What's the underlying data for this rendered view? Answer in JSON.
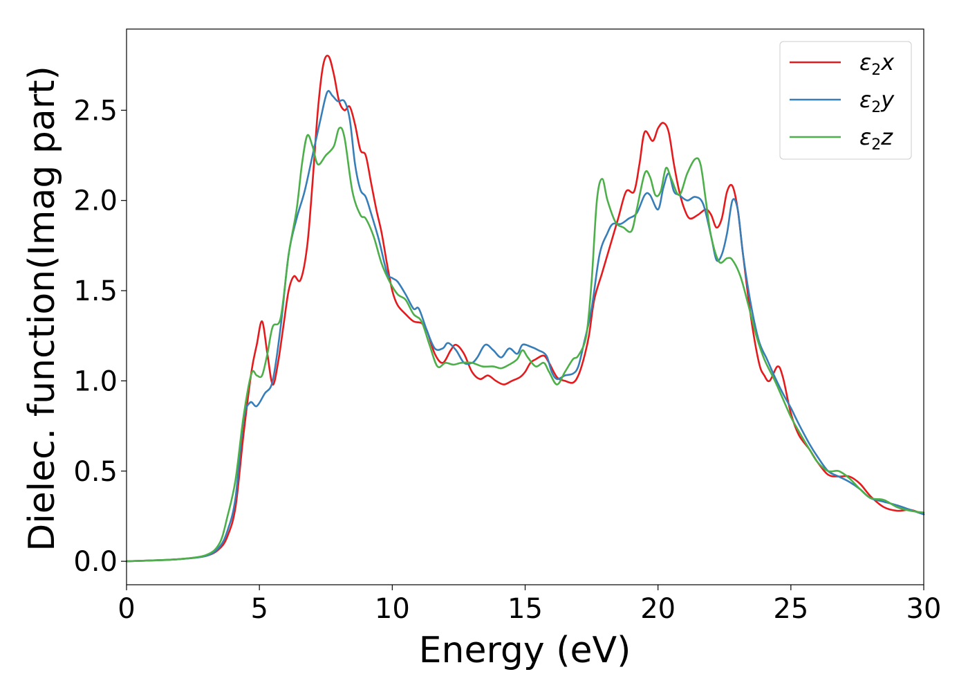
{
  "chart_data": {
    "type": "line",
    "xlabel": "Energy (eV)",
    "ylabel": "Dielec. function(Imag part)",
    "xlim": [
      0,
      30
    ],
    "ylim": [
      -0.13,
      2.95
    ],
    "xticks": [
      "0",
      "5",
      "10",
      "15",
      "20",
      "25",
      "30"
    ],
    "yticks": [
      "0.0",
      "0.5",
      "1.0",
      "1.5",
      "2.0",
      "2.5"
    ],
    "legend_position": "top-right",
    "grid": false,
    "series": [
      {
        "name": "ε2x",
        "legend": {
          "symbol": "ε",
          "sub": "2",
          "suffix": "x"
        },
        "color": "#e41a1c",
        "points": [
          [
            0,
            0.0
          ],
          [
            1,
            0.005
          ],
          [
            2,
            0.012
          ],
          [
            3,
            0.03
          ],
          [
            3.5,
            0.07
          ],
          [
            3.8,
            0.14
          ],
          [
            4.1,
            0.3
          ],
          [
            4.4,
            0.7
          ],
          [
            4.7,
            1.05
          ],
          [
            4.9,
            1.2
          ],
          [
            5.1,
            1.33
          ],
          [
            5.3,
            1.15
          ],
          [
            5.5,
            0.98
          ],
          [
            5.7,
            1.1
          ],
          [
            5.9,
            1.3
          ],
          [
            6.1,
            1.5
          ],
          [
            6.3,
            1.58
          ],
          [
            6.55,
            1.56
          ],
          [
            6.8,
            1.75
          ],
          [
            7.0,
            2.1
          ],
          [
            7.2,
            2.5
          ],
          [
            7.4,
            2.75
          ],
          [
            7.6,
            2.8
          ],
          [
            7.8,
            2.7
          ],
          [
            8.0,
            2.55
          ],
          [
            8.2,
            2.5
          ],
          [
            8.4,
            2.52
          ],
          [
            8.6,
            2.42
          ],
          [
            8.8,
            2.28
          ],
          [
            9.0,
            2.25
          ],
          [
            9.2,
            2.1
          ],
          [
            9.4,
            1.95
          ],
          [
            9.6,
            1.82
          ],
          [
            9.8,
            1.65
          ],
          [
            10.0,
            1.5
          ],
          [
            10.2,
            1.42
          ],
          [
            10.5,
            1.37
          ],
          [
            10.8,
            1.33
          ],
          [
            11.1,
            1.32
          ],
          [
            11.3,
            1.28
          ],
          [
            11.6,
            1.15
          ],
          [
            11.9,
            1.1
          ],
          [
            12.2,
            1.17
          ],
          [
            12.4,
            1.2
          ],
          [
            12.7,
            1.15
          ],
          [
            13.0,
            1.05
          ],
          [
            13.3,
            1.01
          ],
          [
            13.6,
            1.03
          ],
          [
            13.9,
            1.0
          ],
          [
            14.2,
            0.98
          ],
          [
            14.5,
            1.0
          ],
          [
            14.8,
            1.02
          ],
          [
            15.0,
            1.05
          ],
          [
            15.2,
            1.1
          ],
          [
            15.4,
            1.12
          ],
          [
            15.7,
            1.14
          ],
          [
            15.9,
            1.1
          ],
          [
            16.2,
            1.02
          ],
          [
            16.5,
            1.0
          ],
          [
            16.8,
            0.99
          ],
          [
            17.0,
            1.03
          ],
          [
            17.2,
            1.12
          ],
          [
            17.4,
            1.25
          ],
          [
            17.6,
            1.45
          ],
          [
            17.9,
            1.6
          ],
          [
            18.2,
            1.75
          ],
          [
            18.5,
            1.9
          ],
          [
            18.8,
            2.05
          ],
          [
            19.1,
            2.05
          ],
          [
            19.3,
            2.2
          ],
          [
            19.5,
            2.38
          ],
          [
            19.8,
            2.33
          ],
          [
            20.0,
            2.4
          ],
          [
            20.2,
            2.43
          ],
          [
            20.4,
            2.38
          ],
          [
            20.6,
            2.2
          ],
          [
            20.8,
            2.05
          ],
          [
            21.0,
            1.95
          ],
          [
            21.2,
            1.9
          ],
          [
            21.5,
            1.92
          ],
          [
            21.8,
            1.95
          ],
          [
            22.0,
            1.92
          ],
          [
            22.2,
            1.85
          ],
          [
            22.4,
            1.9
          ],
          [
            22.6,
            2.05
          ],
          [
            22.8,
            2.08
          ],
          [
            23.0,
            1.95
          ],
          [
            23.2,
            1.7
          ],
          [
            23.5,
            1.35
          ],
          [
            23.8,
            1.1
          ],
          [
            24.0,
            1.03
          ],
          [
            24.2,
            1.0
          ],
          [
            24.5,
            1.08
          ],
          [
            24.7,
            1.02
          ],
          [
            25.0,
            0.82
          ],
          [
            25.3,
            0.7
          ],
          [
            25.7,
            0.62
          ],
          [
            26.0,
            0.55
          ],
          [
            26.4,
            0.48
          ],
          [
            26.8,
            0.47
          ],
          [
            27.2,
            0.47
          ],
          [
            27.6,
            0.43
          ],
          [
            28.0,
            0.36
          ],
          [
            28.5,
            0.3
          ],
          [
            29.0,
            0.28
          ],
          [
            29.5,
            0.285
          ],
          [
            30.0,
            0.26
          ]
        ]
      },
      {
        "name": "ε2y",
        "legend": {
          "symbol": "ε",
          "sub": "2",
          "suffix": "y"
        },
        "color": "#377eb8",
        "points": [
          [
            0,
            0.0
          ],
          [
            1,
            0.005
          ],
          [
            2,
            0.012
          ],
          [
            3,
            0.03
          ],
          [
            3.5,
            0.08
          ],
          [
            3.8,
            0.17
          ],
          [
            4.1,
            0.35
          ],
          [
            4.4,
            0.78
          ],
          [
            4.65,
            0.88
          ],
          [
            4.9,
            0.86
          ],
          [
            5.2,
            0.93
          ],
          [
            5.5,
            1.0
          ],
          [
            5.8,
            1.3
          ],
          [
            6.1,
            1.7
          ],
          [
            6.4,
            1.9
          ],
          [
            6.7,
            2.05
          ],
          [
            7.0,
            2.25
          ],
          [
            7.3,
            2.45
          ],
          [
            7.55,
            2.6
          ],
          [
            7.75,
            2.58
          ],
          [
            7.95,
            2.55
          ],
          [
            8.2,
            2.55
          ],
          [
            8.4,
            2.45
          ],
          [
            8.6,
            2.2
          ],
          [
            8.8,
            2.06
          ],
          [
            9.0,
            2.02
          ],
          [
            9.2,
            1.93
          ],
          [
            9.5,
            1.78
          ],
          [
            9.8,
            1.6
          ],
          [
            10.0,
            1.57
          ],
          [
            10.2,
            1.55
          ],
          [
            10.5,
            1.48
          ],
          [
            10.8,
            1.4
          ],
          [
            11.0,
            1.4
          ],
          [
            11.3,
            1.28
          ],
          [
            11.6,
            1.18
          ],
          [
            11.9,
            1.18
          ],
          [
            12.1,
            1.21
          ],
          [
            12.4,
            1.17
          ],
          [
            12.7,
            1.1
          ],
          [
            13.0,
            1.1
          ],
          [
            13.2,
            1.13
          ],
          [
            13.5,
            1.2
          ],
          [
            13.8,
            1.17
          ],
          [
            14.1,
            1.13
          ],
          [
            14.4,
            1.18
          ],
          [
            14.7,
            1.15
          ],
          [
            14.9,
            1.2
          ],
          [
            15.2,
            1.19
          ],
          [
            15.5,
            1.17
          ],
          [
            15.8,
            1.14
          ],
          [
            16.0,
            1.05
          ],
          [
            16.2,
            1.01
          ],
          [
            16.5,
            1.03
          ],
          [
            16.8,
            1.04
          ],
          [
            17.0,
            1.08
          ],
          [
            17.2,
            1.2
          ],
          [
            17.5,
            1.4
          ],
          [
            17.8,
            1.7
          ],
          [
            18.1,
            1.82
          ],
          [
            18.3,
            1.87
          ],
          [
            18.6,
            1.87
          ],
          [
            18.9,
            1.9
          ],
          [
            19.2,
            1.93
          ],
          [
            19.5,
            2.03
          ],
          [
            19.7,
            2.03
          ],
          [
            20.0,
            1.95
          ],
          [
            20.2,
            2.07
          ],
          [
            20.4,
            2.15
          ],
          [
            20.6,
            2.05
          ],
          [
            20.8,
            2.03
          ],
          [
            21.1,
            2.0
          ],
          [
            21.4,
            2.02
          ],
          [
            21.7,
            1.98
          ],
          [
            22.0,
            1.8
          ],
          [
            22.2,
            1.67
          ],
          [
            22.4,
            1.7
          ],
          [
            22.6,
            1.82
          ],
          [
            22.8,
            2.0
          ],
          [
            23.0,
            1.95
          ],
          [
            23.2,
            1.7
          ],
          [
            23.5,
            1.42
          ],
          [
            23.8,
            1.22
          ],
          [
            24.1,
            1.12
          ],
          [
            24.4,
            1.02
          ],
          [
            24.7,
            0.93
          ],
          [
            25.0,
            0.85
          ],
          [
            25.3,
            0.76
          ],
          [
            25.7,
            0.65
          ],
          [
            26.0,
            0.58
          ],
          [
            26.4,
            0.5
          ],
          [
            26.8,
            0.47
          ],
          [
            27.2,
            0.44
          ],
          [
            27.6,
            0.4
          ],
          [
            28.0,
            0.35
          ],
          [
            28.5,
            0.33
          ],
          [
            29.0,
            0.31
          ],
          [
            29.5,
            0.285
          ],
          [
            30.0,
            0.26
          ]
        ]
      },
      {
        "name": "ε2z",
        "legend": {
          "symbol": "ε",
          "sub": "2",
          "suffix": "z"
        },
        "color": "#4daf4a",
        "points": [
          [
            0,
            0.0
          ],
          [
            1,
            0.005
          ],
          [
            2,
            0.012
          ],
          [
            3,
            0.035
          ],
          [
            3.5,
            0.1
          ],
          [
            3.8,
            0.25
          ],
          [
            4.1,
            0.45
          ],
          [
            4.4,
            0.8
          ],
          [
            4.7,
            1.04
          ],
          [
            4.9,
            1.03
          ],
          [
            5.1,
            1.03
          ],
          [
            5.3,
            1.15
          ],
          [
            5.5,
            1.3
          ],
          [
            5.8,
            1.35
          ],
          [
            6.1,
            1.7
          ],
          [
            6.4,
            1.95
          ],
          [
            6.6,
            2.2
          ],
          [
            6.8,
            2.36
          ],
          [
            7.0,
            2.3
          ],
          [
            7.2,
            2.2
          ],
          [
            7.5,
            2.25
          ],
          [
            7.8,
            2.3
          ],
          [
            8.0,
            2.4
          ],
          [
            8.2,
            2.35
          ],
          [
            8.5,
            2.05
          ],
          [
            8.8,
            1.92
          ],
          [
            9.0,
            1.9
          ],
          [
            9.3,
            1.8
          ],
          [
            9.6,
            1.65
          ],
          [
            9.9,
            1.55
          ],
          [
            10.2,
            1.48
          ],
          [
            10.5,
            1.45
          ],
          [
            10.8,
            1.37
          ],
          [
            11.1,
            1.33
          ],
          [
            11.4,
            1.2
          ],
          [
            11.7,
            1.08
          ],
          [
            12.0,
            1.1
          ],
          [
            12.3,
            1.09
          ],
          [
            12.6,
            1.1
          ],
          [
            13.0,
            1.1
          ],
          [
            13.4,
            1.08
          ],
          [
            13.8,
            1.08
          ],
          [
            14.1,
            1.07
          ],
          [
            14.4,
            1.09
          ],
          [
            14.7,
            1.12
          ],
          [
            14.9,
            1.17
          ],
          [
            15.1,
            1.13
          ],
          [
            15.4,
            1.08
          ],
          [
            15.7,
            1.1
          ],
          [
            15.9,
            1.05
          ],
          [
            16.2,
            0.98
          ],
          [
            16.5,
            1.05
          ],
          [
            16.8,
            1.12
          ],
          [
            17.0,
            1.14
          ],
          [
            17.3,
            1.25
          ],
          [
            17.5,
            1.55
          ],
          [
            17.7,
            2.0
          ],
          [
            17.9,
            2.12
          ],
          [
            18.1,
            2.0
          ],
          [
            18.4,
            1.88
          ],
          [
            18.7,
            1.85
          ],
          [
            19.0,
            1.83
          ],
          [
            19.2,
            1.95
          ],
          [
            19.5,
            2.15
          ],
          [
            19.7,
            2.13
          ],
          [
            19.9,
            2.03
          ],
          [
            20.1,
            2.05
          ],
          [
            20.3,
            2.18
          ],
          [
            20.5,
            2.12
          ],
          [
            20.8,
            2.03
          ],
          [
            21.1,
            2.15
          ],
          [
            21.4,
            2.23
          ],
          [
            21.6,
            2.2
          ],
          [
            21.8,
            2.0
          ],
          [
            22.0,
            1.8
          ],
          [
            22.3,
            1.66
          ],
          [
            22.6,
            1.68
          ],
          [
            22.8,
            1.67
          ],
          [
            23.1,
            1.58
          ],
          [
            23.4,
            1.42
          ],
          [
            23.7,
            1.25
          ],
          [
            24.0,
            1.12
          ],
          [
            24.4,
            1.0
          ],
          [
            24.7,
            0.9
          ],
          [
            25.0,
            0.8
          ],
          [
            25.3,
            0.72
          ],
          [
            25.7,
            0.62
          ],
          [
            26.0,
            0.55
          ],
          [
            26.4,
            0.5
          ],
          [
            26.8,
            0.5
          ],
          [
            27.2,
            0.46
          ],
          [
            27.6,
            0.4
          ],
          [
            28.0,
            0.35
          ],
          [
            28.5,
            0.34
          ],
          [
            29.0,
            0.3
          ],
          [
            29.5,
            0.28
          ],
          [
            30.0,
            0.27
          ]
        ]
      }
    ]
  }
}
